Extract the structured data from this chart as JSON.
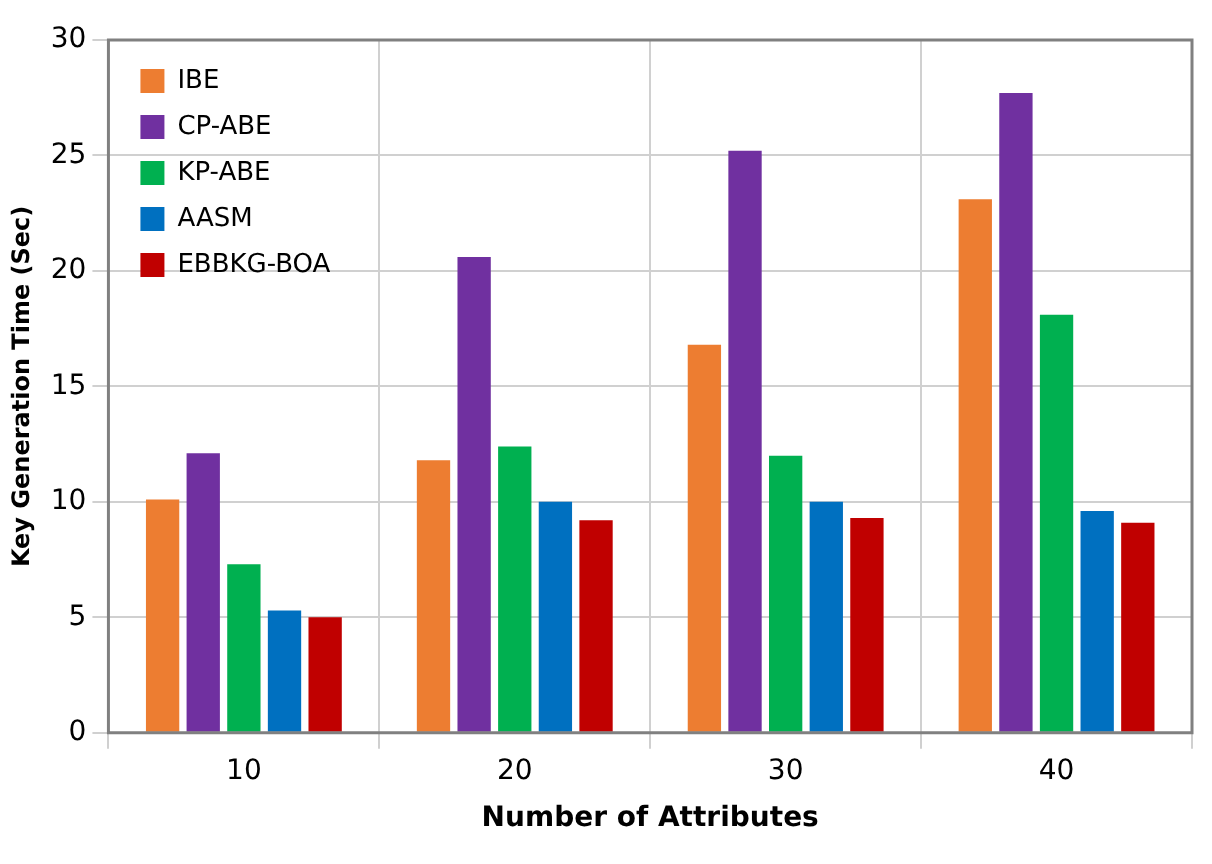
{
  "chart_data": {
    "type": "bar",
    "xlabel": "Number of Attributes",
    "ylabel": "Key Generation Time (Sec)",
    "categories": [
      "10",
      "20",
      "30",
      "40"
    ],
    "series": [
      {
        "name": "IBE",
        "color": "#ed7d31",
        "values": [
          10.1,
          11.8,
          16.8,
          23.1
        ]
      },
      {
        "name": "CP-ABE",
        "color": "#7030a0",
        "values": [
          12.1,
          20.6,
          25.2,
          27.7
        ]
      },
      {
        "name": "KP-ABE",
        "color": "#00b050",
        "values": [
          7.3,
          12.4,
          12.0,
          18.1
        ]
      },
      {
        "name": "AASM",
        "color": "#0070c0",
        "values": [
          5.3,
          10.0,
          10.0,
          9.6
        ]
      },
      {
        "name": "EBBKG-BOA",
        "color": "#c00000",
        "values": [
          5.0,
          9.2,
          9.3,
          9.1
        ]
      }
    ],
    "ylim": [
      0,
      30
    ],
    "yticks": [
      0,
      5,
      10,
      15,
      20,
      25,
      30
    ],
    "grid": true,
    "legend": "top left"
  }
}
